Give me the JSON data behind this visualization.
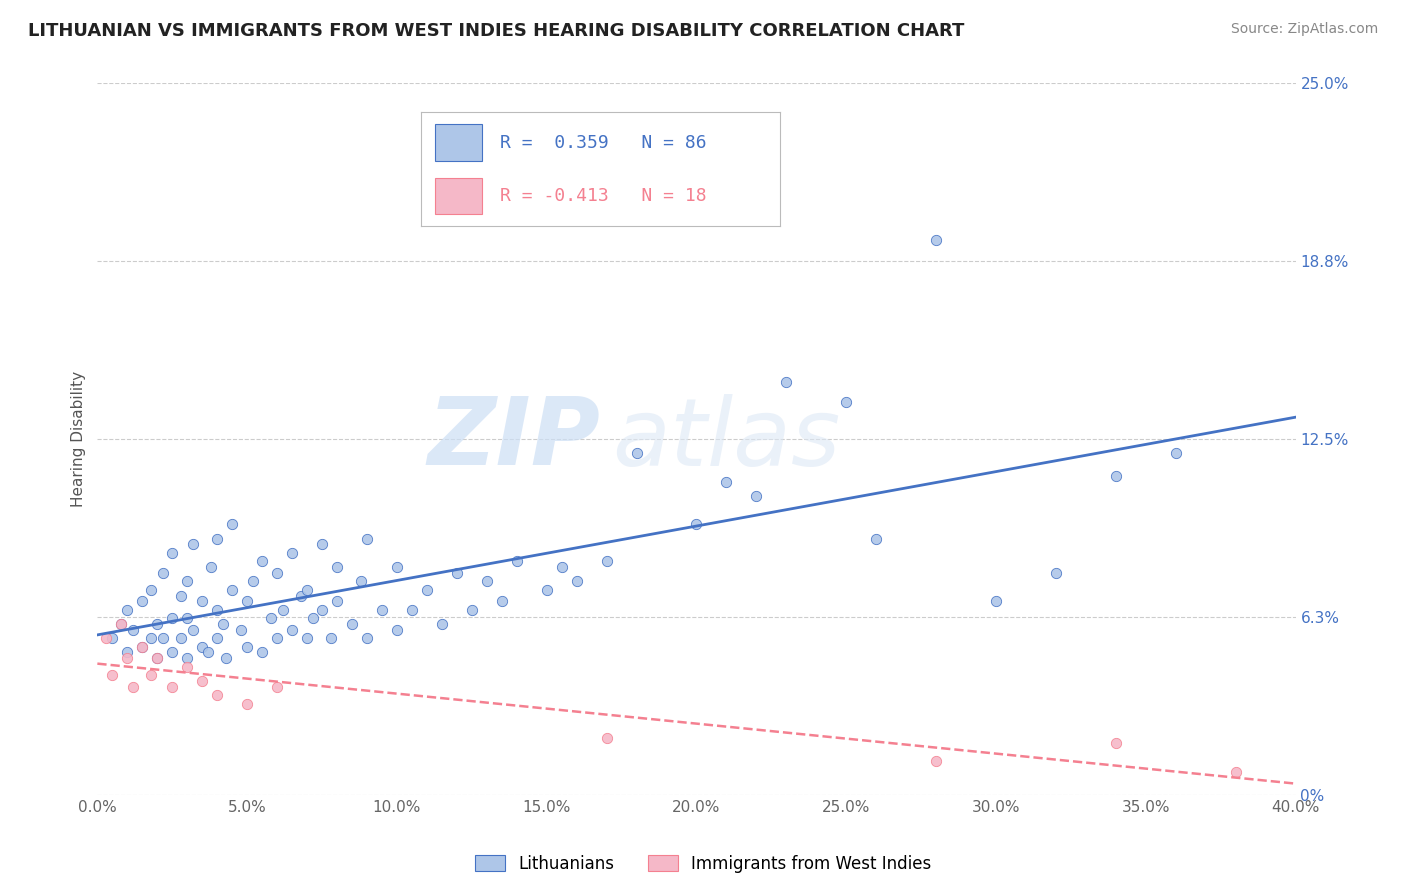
{
  "title": "LITHUANIAN VS IMMIGRANTS FROM WEST INDIES HEARING DISABILITY CORRELATION CHART",
  "source": "Source: ZipAtlas.com",
  "ylabel": "Hearing Disability",
  "xmin": 0.0,
  "xmax": 0.4,
  "ymin": 0.0,
  "ymax": 0.25,
  "yticks": [
    0.0,
    0.0625,
    0.125,
    0.1875,
    0.25
  ],
  "ytick_labels": [
    "0%",
    "6.3%",
    "12.5%",
    "18.8%",
    "25.0%"
  ],
  "xticks": [
    0.0,
    0.05,
    0.1,
    0.15,
    0.2,
    0.25,
    0.3,
    0.35,
    0.4
  ],
  "xtick_labels": [
    "0.0%",
    "5.0%",
    "10.0%",
    "15.0%",
    "20.0%",
    "25.0%",
    "30.0%",
    "35.0%",
    "40.0%"
  ],
  "blue_R": 0.359,
  "blue_N": 86,
  "pink_R": -0.413,
  "pink_N": 18,
  "blue_color": "#aec6e8",
  "pink_color": "#f5b8c8",
  "line_blue": "#4472c4",
  "line_pink": "#f48090",
  "legend_label_blue": "Lithuanians",
  "legend_label_pink": "Immigrants from West Indies",
  "watermark_zip": "ZIP",
  "watermark_atlas": "atlas",
  "blue_scatter_x": [
    0.005,
    0.008,
    0.01,
    0.01,
    0.012,
    0.015,
    0.015,
    0.018,
    0.018,
    0.02,
    0.02,
    0.022,
    0.022,
    0.025,
    0.025,
    0.025,
    0.028,
    0.028,
    0.03,
    0.03,
    0.03,
    0.032,
    0.032,
    0.035,
    0.035,
    0.037,
    0.038,
    0.04,
    0.04,
    0.04,
    0.042,
    0.043,
    0.045,
    0.045,
    0.048,
    0.05,
    0.05,
    0.052,
    0.055,
    0.055,
    0.058,
    0.06,
    0.06,
    0.062,
    0.065,
    0.065,
    0.068,
    0.07,
    0.07,
    0.072,
    0.075,
    0.075,
    0.078,
    0.08,
    0.08,
    0.085,
    0.088,
    0.09,
    0.09,
    0.095,
    0.1,
    0.1,
    0.105,
    0.11,
    0.115,
    0.12,
    0.125,
    0.13,
    0.135,
    0.14,
    0.15,
    0.155,
    0.16,
    0.17,
    0.18,
    0.2,
    0.22,
    0.25,
    0.3,
    0.32,
    0.34,
    0.36,
    0.21,
    0.23,
    0.26,
    0.28
  ],
  "blue_scatter_y": [
    0.055,
    0.06,
    0.05,
    0.065,
    0.058,
    0.052,
    0.068,
    0.055,
    0.072,
    0.048,
    0.06,
    0.055,
    0.078,
    0.05,
    0.062,
    0.085,
    0.055,
    0.07,
    0.048,
    0.062,
    0.075,
    0.058,
    0.088,
    0.052,
    0.068,
    0.05,
    0.08,
    0.055,
    0.065,
    0.09,
    0.06,
    0.048,
    0.072,
    0.095,
    0.058,
    0.052,
    0.068,
    0.075,
    0.05,
    0.082,
    0.062,
    0.055,
    0.078,
    0.065,
    0.058,
    0.085,
    0.07,
    0.055,
    0.072,
    0.062,
    0.065,
    0.088,
    0.055,
    0.068,
    0.08,
    0.06,
    0.075,
    0.055,
    0.09,
    0.065,
    0.058,
    0.08,
    0.065,
    0.072,
    0.06,
    0.078,
    0.065,
    0.075,
    0.068,
    0.082,
    0.072,
    0.08,
    0.075,
    0.082,
    0.12,
    0.095,
    0.105,
    0.138,
    0.068,
    0.078,
    0.112,
    0.12,
    0.11,
    0.145,
    0.09,
    0.195
  ],
  "pink_scatter_x": [
    0.003,
    0.005,
    0.008,
    0.01,
    0.012,
    0.015,
    0.018,
    0.02,
    0.025,
    0.03,
    0.035,
    0.04,
    0.05,
    0.06,
    0.17,
    0.28,
    0.34,
    0.38
  ],
  "pink_scatter_y": [
    0.055,
    0.042,
    0.06,
    0.048,
    0.038,
    0.052,
    0.042,
    0.048,
    0.038,
    0.045,
    0.04,
    0.035,
    0.032,
    0.038,
    0.02,
    0.012,
    0.018,
    0.008
  ]
}
